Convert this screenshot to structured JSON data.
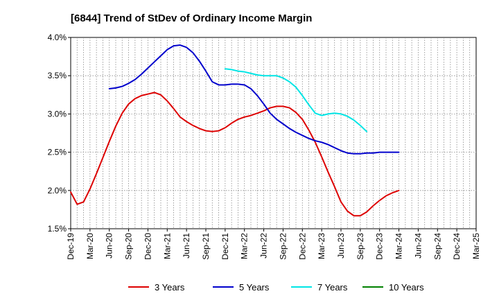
{
  "chart_data": {
    "type": "line",
    "title": "[6844]  Trend of StDev of Ordinary Income Margin",
    "xlabel": "",
    "ylabel": "",
    "ylim": [
      1.5,
      4.0
    ],
    "y_ticks": [
      1.5,
      2.0,
      2.5,
      3.0,
      3.5,
      4.0
    ],
    "y_tick_labels": [
      "1.5%",
      "2.0%",
      "2.5%",
      "3.0%",
      "3.5%",
      "4.0%"
    ],
    "x_tick_labels": [
      "Dec-19",
      "Mar-20",
      "Jun-20",
      "Sep-20",
      "Dec-20",
      "Mar-21",
      "Jun-21",
      "Sep-21",
      "Dec-21",
      "Mar-22",
      "Jun-22",
      "Sep-22",
      "Dec-22",
      "Mar-23",
      "Jun-23",
      "Sep-23",
      "Dec-23",
      "Mar-24",
      "Jun-24",
      "Sep-24",
      "Dec-24",
      "Mar-25"
    ],
    "grid": true,
    "legend_position": "bottom",
    "series": [
      {
        "name": "3 Years",
        "color": "#dd0000",
        "values": [
          1.98,
          1.82,
          1.85,
          2.02,
          2.22,
          2.43,
          2.64,
          2.84,
          3.01,
          3.13,
          3.2,
          3.24,
          3.26,
          3.28,
          3.25,
          3.17,
          3.07,
          2.96,
          2.9,
          2.85,
          2.81,
          2.78,
          2.77,
          2.78,
          2.82,
          2.88,
          2.93,
          2.96,
          2.98,
          3.01,
          3.04,
          3.08,
          3.1,
          3.1,
          3.08,
          3.02,
          2.93,
          2.79,
          2.63,
          2.44,
          2.24,
          2.05,
          1.85,
          1.73,
          1.67,
          1.67,
          1.72,
          1.8,
          1.87,
          1.93,
          1.97,
          2.0
        ]
      },
      {
        "name": "5 Years",
        "color": "#0000cc",
        "values": [
          null,
          null,
          null,
          null,
          null,
          null,
          3.33,
          3.34,
          3.36,
          3.4,
          3.45,
          3.52,
          3.6,
          3.68,
          3.76,
          3.84,
          3.89,
          3.9,
          3.87,
          3.8,
          3.69,
          3.56,
          3.42,
          3.38,
          3.38,
          3.39,
          3.39,
          3.38,
          3.33,
          3.24,
          3.13,
          3.01,
          2.93,
          2.87,
          2.81,
          2.76,
          2.72,
          2.68,
          2.65,
          2.63,
          2.6,
          2.56,
          2.52,
          2.49,
          2.48,
          2.48,
          2.49,
          2.49,
          2.5,
          2.5,
          2.5,
          2.5
        ]
      },
      {
        "name": "7 Years",
        "color": "#00e5e5",
        "values": [
          null,
          null,
          null,
          null,
          null,
          null,
          null,
          null,
          null,
          null,
          null,
          null,
          null,
          null,
          null,
          null,
          null,
          null,
          null,
          null,
          null,
          null,
          null,
          null,
          3.59,
          3.58,
          3.56,
          3.55,
          3.53,
          3.51,
          3.5,
          3.5,
          3.5,
          3.47,
          3.42,
          3.35,
          3.24,
          3.12,
          3.01,
          2.98,
          3.0,
          3.01,
          3.0,
          2.97,
          2.92,
          2.85,
          2.77
        ]
      },
      {
        "name": "10 Years",
        "color": "#008000",
        "values": []
      }
    ]
  }
}
